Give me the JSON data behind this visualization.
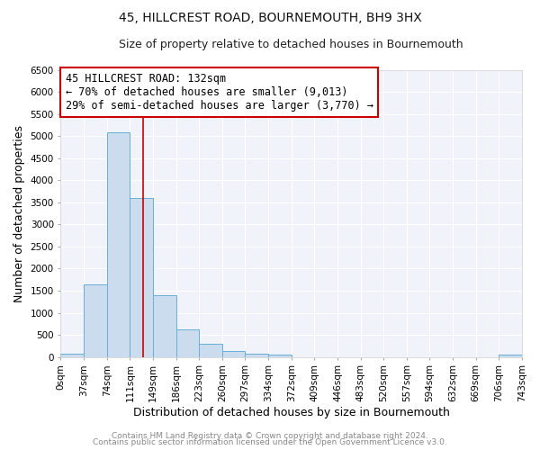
{
  "title": "45, HILLCREST ROAD, BOURNEMOUTH, BH9 3HX",
  "subtitle": "Size of property relative to detached houses in Bournemouth",
  "xlabel": "Distribution of detached houses by size in Bournemouth",
  "ylabel": "Number of detached properties",
  "bin_edges": [
    0,
    37,
    74,
    111,
    148,
    185,
    222,
    259,
    296,
    333,
    370,
    407,
    444,
    481,
    518,
    555,
    592,
    629,
    666,
    703,
    740
  ],
  "bin_labels": [
    "0sqm",
    "37sqm",
    "74sqm",
    "111sqm",
    "149sqm",
    "186sqm",
    "223sqm",
    "260sqm",
    "297sqm",
    "334sqm",
    "372sqm",
    "409sqm",
    "446sqm",
    "483sqm",
    "520sqm",
    "557sqm",
    "594sqm",
    "632sqm",
    "669sqm",
    "706sqm",
    "743sqm"
  ],
  "counts": [
    75,
    1650,
    5075,
    3600,
    1400,
    620,
    290,
    140,
    75,
    55,
    0,
    0,
    0,
    0,
    0,
    0,
    0,
    0,
    0,
    50
  ],
  "bar_color": "#ccdcef",
  "bar_edge_color": "#6aaed6",
  "vline_x": 132,
  "vline_color": "#cc0000",
  "annotation_title": "45 HILLCREST ROAD: 132sqm",
  "annotation_line1": "← 70% of detached houses are smaller (9,013)",
  "annotation_line2": "29% of semi-detached houses are larger (3,770) →",
  "annotation_box_facecolor": "white",
  "annotation_box_edgecolor": "#cc0000",
  "ylim": [
    0,
    6500
  ],
  "yticks": [
    0,
    500,
    1000,
    1500,
    2000,
    2500,
    3000,
    3500,
    4000,
    4500,
    5000,
    5500,
    6000,
    6500
  ],
  "footer1": "Contains HM Land Registry data © Crown copyright and database right 2024.",
  "footer2": "Contains public sector information licensed under the Open Government Licence v3.0.",
  "background_color": "#ffffff",
  "plot_bg_color": "#f0f4fa",
  "grid_color": "#ffffff",
  "title_fontsize": 10,
  "subtitle_fontsize": 9,
  "axis_label_fontsize": 9,
  "tick_fontsize": 7.5,
  "annotation_fontsize": 8.5,
  "footer_fontsize": 6.5
}
